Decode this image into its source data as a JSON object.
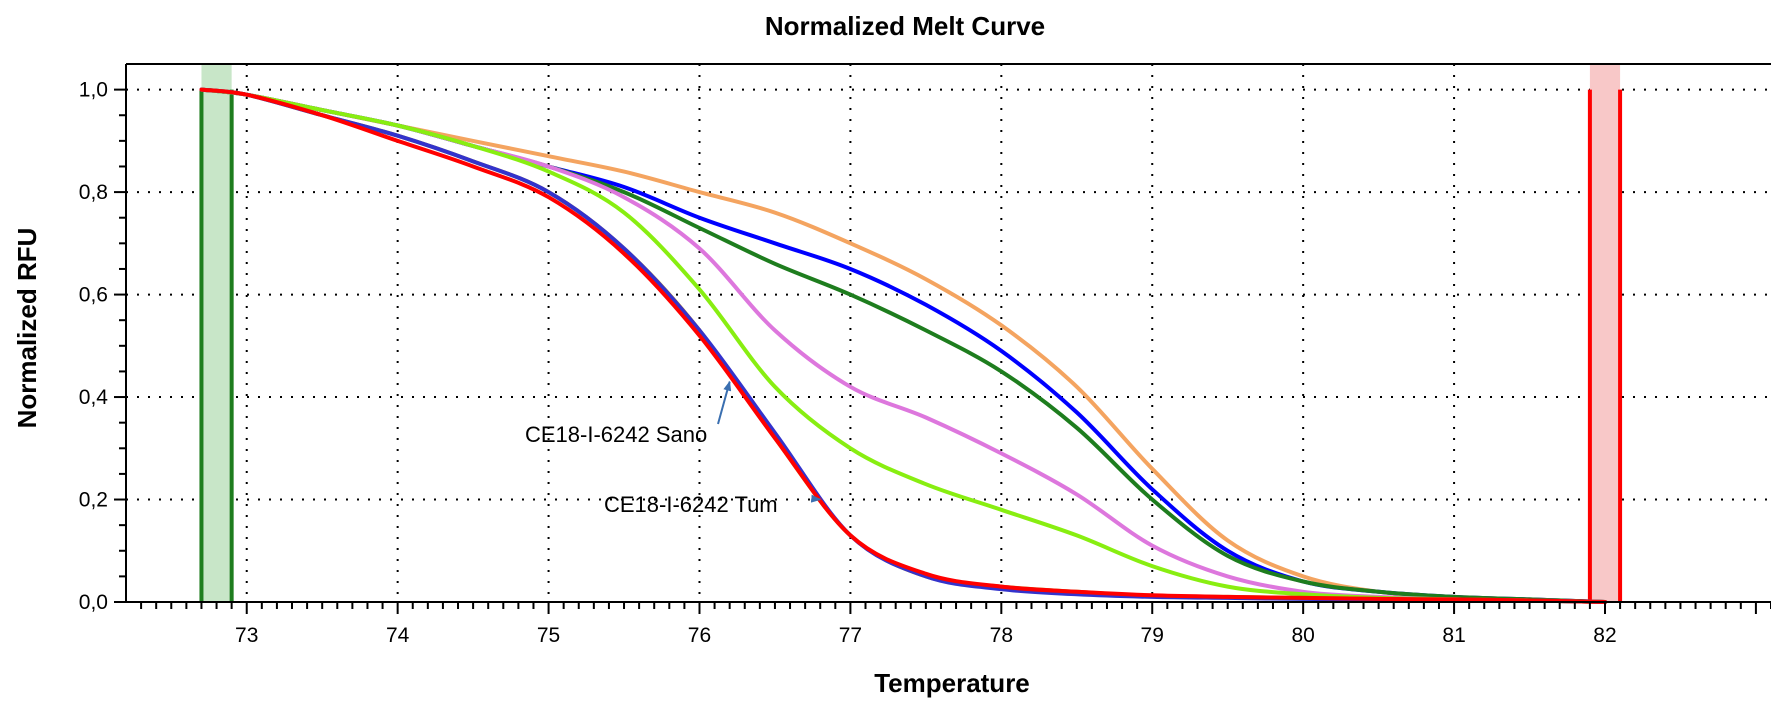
{
  "chart_data": {
    "type": "line",
    "title": "Normalized Melt Curve",
    "xlabel": "Temperature",
    "ylabel": "Normalized RFU",
    "xlim": [
      72.2,
      83.1
    ],
    "ylim": [
      0.0,
      1.05
    ],
    "x_ticks": [
      73,
      74,
      75,
      76,
      77,
      78,
      79,
      80,
      81,
      82
    ],
    "x_tick_labels": [
      "73",
      "74",
      "75",
      "76",
      "77",
      "78",
      "79",
      "80",
      "81",
      "82"
    ],
    "y_ticks": [
      0.0,
      0.2,
      0.4,
      0.6,
      0.8,
      1.0
    ],
    "y_tick_labels": [
      "0,0",
      "0,2",
      "0,4",
      "0,6",
      "0,8",
      "1,0"
    ],
    "grid": true,
    "series": [
      {
        "color": "#f4a460",
        "x": [
          72.7,
          73,
          73.5,
          74,
          74.5,
          75,
          75.5,
          76,
          76.5,
          77,
          77.5,
          78,
          78.5,
          79,
          79.5,
          80,
          80.5,
          81,
          81.5,
          82
        ],
        "values": [
          1.0,
          0.99,
          0.96,
          0.93,
          0.9,
          0.87,
          0.84,
          0.8,
          0.76,
          0.7,
          0.63,
          0.54,
          0.42,
          0.26,
          0.12,
          0.05,
          0.02,
          0.01,
          0.005,
          0.0
        ]
      },
      {
        "color": "#0000ff",
        "x": [
          72.7,
          73,
          73.5,
          74,
          74.5,
          75,
          75.5,
          76,
          76.5,
          77,
          77.5,
          78,
          78.5,
          79,
          79.5,
          80,
          80.5,
          81,
          81.5,
          82
        ],
        "values": [
          1.0,
          0.99,
          0.96,
          0.93,
          0.89,
          0.85,
          0.81,
          0.75,
          0.7,
          0.65,
          0.58,
          0.49,
          0.37,
          0.22,
          0.1,
          0.04,
          0.02,
          0.01,
          0.005,
          0.0
        ]
      },
      {
        "color": "#1e7d1e",
        "x": [
          72.7,
          73,
          73.5,
          74,
          74.5,
          75,
          75.5,
          76,
          76.5,
          77,
          77.5,
          78,
          78.5,
          79,
          79.5,
          80,
          80.5,
          81,
          81.5,
          82
        ],
        "values": [
          1.0,
          0.99,
          0.96,
          0.93,
          0.89,
          0.85,
          0.8,
          0.73,
          0.66,
          0.6,
          0.53,
          0.45,
          0.34,
          0.2,
          0.09,
          0.04,
          0.02,
          0.01,
          0.005,
          0.0
        ]
      },
      {
        "color": "#dd77dd",
        "x": [
          72.7,
          73,
          73.5,
          74,
          74.5,
          75,
          75.5,
          76,
          76.5,
          77,
          77.5,
          78,
          78.5,
          79,
          79.5,
          80,
          80.5,
          81,
          81.5,
          82
        ],
        "values": [
          1.0,
          0.99,
          0.96,
          0.93,
          0.89,
          0.85,
          0.79,
          0.69,
          0.53,
          0.42,
          0.36,
          0.29,
          0.21,
          0.11,
          0.05,
          0.02,
          0.01,
          0.005,
          0.003,
          0.0
        ]
      },
      {
        "color": "#88ee11",
        "x": [
          72.7,
          73,
          73.5,
          74,
          74.5,
          75,
          75.5,
          76,
          76.5,
          77,
          77.5,
          78,
          78.5,
          79,
          79.5,
          80,
          80.5,
          81,
          81.5,
          82
        ],
        "values": [
          1.0,
          0.99,
          0.96,
          0.93,
          0.89,
          0.84,
          0.76,
          0.61,
          0.42,
          0.3,
          0.23,
          0.18,
          0.13,
          0.07,
          0.03,
          0.015,
          0.008,
          0.005,
          0.003,
          0.0
        ]
      },
      {
        "color": "#b8860b",
        "x": [
          72.7,
          73,
          73.5,
          74,
          74.5,
          75,
          75.5,
          76,
          76.5,
          77,
          77.5,
          78,
          78.5,
          79,
          79.5,
          80,
          80.5,
          81,
          81.5,
          82
        ],
        "values": [
          1.0,
          0.99,
          0.95,
          0.91,
          0.86,
          0.8,
          0.69,
          0.53,
          0.32,
          0.13,
          0.05,
          0.03,
          0.02,
          0.012,
          0.01,
          0.008,
          0.006,
          0.005,
          0.003,
          0.0
        ]
      },
      {
        "color": "#3333cc",
        "x": [
          72.7,
          73,
          73.5,
          74,
          74.5,
          75,
          75.5,
          76,
          76.5,
          77,
          77.5,
          78,
          78.5,
          79,
          79.5,
          80,
          80.5,
          81,
          81.5,
          82
        ],
        "values": [
          1.0,
          0.99,
          0.95,
          0.91,
          0.86,
          0.8,
          0.69,
          0.53,
          0.33,
          0.13,
          0.05,
          0.025,
          0.015,
          0.01,
          0.008,
          0.006,
          0.005,
          0.004,
          0.003,
          0.0
        ]
      },
      {
        "color": "#ff0000",
        "x": [
          72.7,
          73,
          73.5,
          74,
          74.5,
          75,
          75.5,
          76,
          76.5,
          77,
          77.5,
          78,
          78.5,
          79,
          79.5,
          80,
          80.5,
          81,
          81.5,
          82
        ],
        "values": [
          1.0,
          0.99,
          0.95,
          0.9,
          0.85,
          0.79,
          0.68,
          0.52,
          0.32,
          0.13,
          0.055,
          0.03,
          0.02,
          0.013,
          0.01,
          0.008,
          0.006,
          0.005,
          0.003,
          0.0
        ]
      }
    ],
    "annotations": [
      {
        "text": "CE18-I-6242 Sano",
        "x": 76.2,
        "y": 0.43
      },
      {
        "text": "CE18-I-6242 Tum",
        "x": 76.8,
        "y": 0.2
      }
    ],
    "regions": [
      {
        "color": "#1e7d1e",
        "fill": "#c8e6c8",
        "x_start": 72.7,
        "x_end": 72.9
      },
      {
        "color": "#ff0000",
        "fill": "#f8c8c8",
        "x_start": 81.9,
        "x_end": 82.1
      }
    ]
  }
}
